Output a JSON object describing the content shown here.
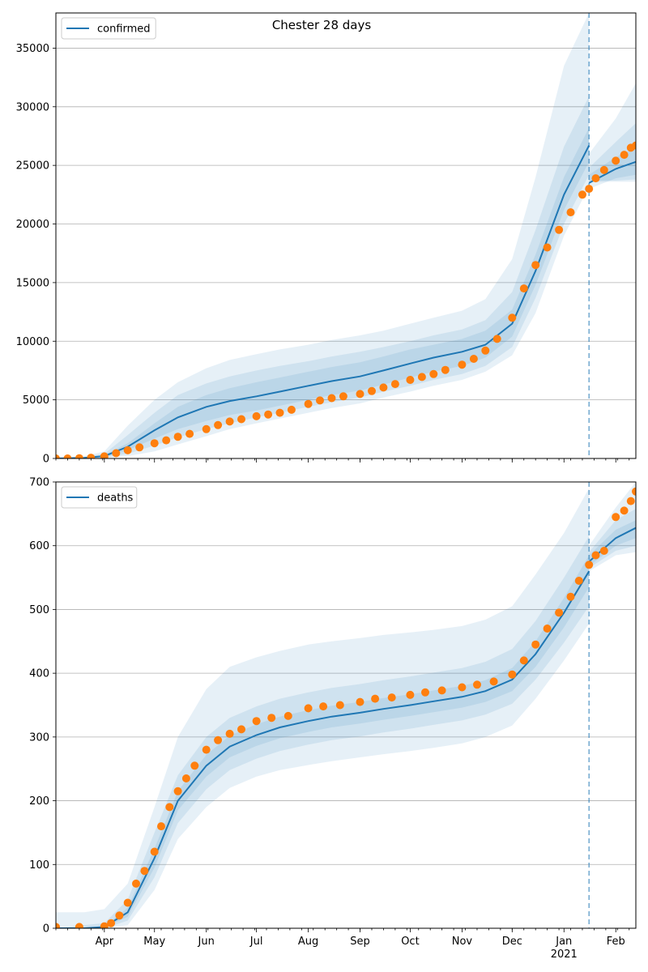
{
  "title": "Chester 28 days",
  "colors": {
    "model": "#1f77b4",
    "observed": "#ff7f0e",
    "band": "#1f77b4",
    "grid": "#b0b0b0",
    "vline": "#1f77b4"
  },
  "x_axis": {
    "month_labels": [
      {
        "label": "Apr",
        "date": "2020-04-01"
      },
      {
        "label": "May",
        "date": "2020-05-01"
      },
      {
        "label": "Jun",
        "date": "2020-06-01"
      },
      {
        "label": "Jul",
        "date": "2020-07-01"
      },
      {
        "label": "Aug",
        "date": "2020-08-01"
      },
      {
        "label": "Sep",
        "date": "2020-09-01"
      },
      {
        "label": "Oct",
        "date": "2020-10-01"
      },
      {
        "label": "Nov",
        "date": "2020-11-01"
      },
      {
        "label": "Dec",
        "date": "2020-12-01"
      },
      {
        "label": "Jan",
        "date": "2021-01-01"
      },
      {
        "label": "Feb",
        "date": "2021-02-01"
      }
    ],
    "year_label": "2021",
    "range": [
      "2020-03-03",
      "2021-02-13"
    ],
    "forecast_start": "2021-01-16"
  },
  "chart_data": [
    {
      "type": "line",
      "title": "Chester 28 days",
      "legend": {
        "label": "confirmed",
        "position": "upper-left"
      },
      "ylim": [
        0,
        38000
      ],
      "yticks": [
        0,
        5000,
        10000,
        15000,
        20000,
        25000,
        30000,
        35000
      ],
      "grid": "horizontal",
      "model_series": {
        "name": "confirmed",
        "x": [
          "2020-03-03",
          "2020-03-20",
          "2020-04-01",
          "2020-04-15",
          "2020-05-01",
          "2020-05-15",
          "2020-06-01",
          "2020-06-15",
          "2020-07-01",
          "2020-07-15",
          "2020-08-01",
          "2020-08-15",
          "2020-09-01",
          "2020-09-15",
          "2020-10-01",
          "2020-10-15",
          "2020-11-01",
          "2020-11-15",
          "2020-12-01",
          "2020-12-15",
          "2021-01-01",
          "2021-01-16",
          "2021-01-16",
          "2021-02-01",
          "2021-02-13"
        ],
        "y": [
          0,
          50,
          200,
          1000,
          2400,
          3500,
          4400,
          4900,
          5300,
          5700,
          6200,
          6600,
          7000,
          7500,
          8100,
          8600,
          9100,
          9700,
          11500,
          16000,
          22500,
          26700,
          23500,
          24700,
          25300
        ],
        "band1_lo": [
          0,
          30,
          120,
          700,
          1700,
          2500,
          3200,
          3700,
          4100,
          4500,
          5000,
          5400,
          5800,
          6300,
          6900,
          7400,
          7900,
          8600,
          10400,
          14800,
          21200,
          25300,
          23000,
          23900,
          24200
        ],
        "band1_hi": [
          0,
          80,
          300,
          1300,
          3000,
          4400,
          5400,
          6000,
          6500,
          6900,
          7400,
          7800,
          8200,
          8700,
          9300,
          9700,
          10200,
          10900,
          12700,
          17400,
          24000,
          28200,
          24200,
          25700,
          26500
        ],
        "band2_lo": [
          0,
          20,
          60,
          400,
          1100,
          1800,
          2500,
          3000,
          3500,
          3900,
          4400,
          4800,
          5200,
          5700,
          6200,
          6700,
          7200,
          7900,
          9500,
          13700,
          20000,
          24200,
          23700,
          23700,
          23800
        ],
        "band2_hi": [
          0,
          120,
          400,
          2000,
          3900,
          5400,
          6400,
          7000,
          7500,
          7900,
          8300,
          8700,
          9100,
          9500,
          10000,
          10500,
          11000,
          11800,
          14200,
          19500,
          26600,
          30900,
          24800,
          27000,
          28600
        ],
        "band3_lo": [
          0,
          10,
          40,
          200,
          600,
          1200,
          1900,
          2500,
          3000,
          3400,
          3900,
          4300,
          4700,
          5200,
          5700,
          6200,
          6700,
          7400,
          8800,
          12400,
          19000,
          23200,
          23600,
          23600,
          23600
        ],
        "band3_hi": [
          0,
          200,
          600,
          2800,
          5000,
          6500,
          7700,
          8400,
          8900,
          9300,
          9700,
          10100,
          10500,
          10900,
          11500,
          12000,
          12600,
          13600,
          17000,
          24000,
          33500,
          38000,
          26000,
          29000,
          32000
        ]
      },
      "observed_points": [
        {
          "x": "2020-03-03",
          "y": 0
        },
        {
          "x": "2020-03-10",
          "y": 0
        },
        {
          "x": "2020-03-17",
          "y": 20
        },
        {
          "x": "2020-03-24",
          "y": 60
        },
        {
          "x": "2020-04-01",
          "y": 180
        },
        {
          "x": "2020-04-08",
          "y": 450
        },
        {
          "x": "2020-04-15",
          "y": 700
        },
        {
          "x": "2020-04-22",
          "y": 950
        },
        {
          "x": "2020-05-01",
          "y": 1300
        },
        {
          "x": "2020-05-08",
          "y": 1550
        },
        {
          "x": "2020-05-15",
          "y": 1850
        },
        {
          "x": "2020-05-22",
          "y": 2100
        },
        {
          "x": "2020-06-01",
          "y": 2500
        },
        {
          "x": "2020-06-08",
          "y": 2850
        },
        {
          "x": "2020-06-15",
          "y": 3150
        },
        {
          "x": "2020-06-22",
          "y": 3350
        },
        {
          "x": "2020-07-01",
          "y": 3600
        },
        {
          "x": "2020-07-08",
          "y": 3750
        },
        {
          "x": "2020-07-15",
          "y": 3900
        },
        {
          "x": "2020-07-22",
          "y": 4150
        },
        {
          "x": "2020-08-01",
          "y": 4650
        },
        {
          "x": "2020-08-08",
          "y": 4950
        },
        {
          "x": "2020-08-15",
          "y": 5150
        },
        {
          "x": "2020-08-22",
          "y": 5300
        },
        {
          "x": "2020-09-01",
          "y": 5500
        },
        {
          "x": "2020-09-08",
          "y": 5750
        },
        {
          "x": "2020-09-15",
          "y": 6050
        },
        {
          "x": "2020-09-22",
          "y": 6350
        },
        {
          "x": "2020-10-01",
          "y": 6700
        },
        {
          "x": "2020-10-08",
          "y": 6950
        },
        {
          "x": "2020-10-15",
          "y": 7200
        },
        {
          "x": "2020-10-22",
          "y": 7550
        },
        {
          "x": "2020-11-01",
          "y": 8000
        },
        {
          "x": "2020-11-08",
          "y": 8500
        },
        {
          "x": "2020-11-15",
          "y": 9200
        },
        {
          "x": "2020-11-22",
          "y": 10200
        },
        {
          "x": "2020-12-01",
          "y": 12000
        },
        {
          "x": "2020-12-08",
          "y": 14500
        },
        {
          "x": "2020-12-15",
          "y": 16500
        },
        {
          "x": "2020-12-22",
          "y": 18000
        },
        {
          "x": "2020-12-29",
          "y": 19500
        },
        {
          "x": "2021-01-05",
          "y": 21000
        },
        {
          "x": "2021-01-12",
          "y": 22500
        },
        {
          "x": "2021-01-16",
          "y": 23000
        },
        {
          "x": "2021-01-20",
          "y": 23900
        },
        {
          "x": "2021-01-25",
          "y": 24600
        },
        {
          "x": "2021-02-01",
          "y": 25400
        },
        {
          "x": "2021-02-06",
          "y": 25900
        },
        {
          "x": "2021-02-10",
          "y": 26500
        },
        {
          "x": "2021-02-13",
          "y": 26700
        }
      ]
    },
    {
      "type": "line",
      "legend": {
        "label": "deaths",
        "position": "upper-left"
      },
      "ylim": [
        0,
        700
      ],
      "yticks": [
        0,
        100,
        200,
        300,
        400,
        500,
        600,
        700
      ],
      "grid": "horizontal",
      "model_series": {
        "name": "deaths",
        "x": [
          "2020-03-03",
          "2020-03-20",
          "2020-04-01",
          "2020-04-15",
          "2020-05-01",
          "2020-05-15",
          "2020-06-01",
          "2020-06-15",
          "2020-07-01",
          "2020-07-15",
          "2020-08-01",
          "2020-08-15",
          "2020-09-01",
          "2020-09-15",
          "2020-10-01",
          "2020-10-15",
          "2020-11-01",
          "2020-11-15",
          "2020-12-01",
          "2020-12-15",
          "2021-01-01",
          "2021-01-16",
          "2021-01-16",
          "2021-02-01",
          "2021-02-13"
        ],
        "y": [
          0,
          0,
          2,
          25,
          110,
          200,
          255,
          285,
          303,
          315,
          325,
          332,
          338,
          344,
          350,
          356,
          363,
          372,
          390,
          430,
          495,
          560,
          575,
          612,
          628
        ],
        "band1_lo": [
          0,
          0,
          1,
          18,
          95,
          185,
          238,
          268,
          286,
          298,
          308,
          315,
          321,
          327,
          333,
          339,
          346,
          355,
          372,
          410,
          472,
          535,
          568,
          600,
          612
        ],
        "band1_hi": [
          0,
          0,
          3,
          32,
          125,
          215,
          272,
          302,
          320,
          332,
          342,
          349,
          355,
          361,
          367,
          373,
          380,
          389,
          408,
          450,
          518,
          585,
          585,
          625,
          640
        ],
        "band2_lo": [
          0,
          0,
          0,
          12,
          80,
          165,
          218,
          248,
          266,
          278,
          288,
          295,
          301,
          307,
          313,
          319,
          326,
          335,
          352,
          390,
          448,
          505,
          565,
          592,
          600
        ],
        "band2_hi": [
          0,
          5,
          8,
          45,
          150,
          240,
          300,
          330,
          348,
          360,
          370,
          377,
          383,
          389,
          395,
          401,
          408,
          418,
          438,
          482,
          550,
          615,
          590,
          640,
          658
        ],
        "band3_lo": [
          0,
          0,
          0,
          5,
          60,
          140,
          190,
          220,
          238,
          248,
          256,
          262,
          268,
          273,
          278,
          283,
          290,
          300,
          318,
          360,
          420,
          478,
          560,
          585,
          590
        ],
        "band3_hi": [
          25,
          25,
          30,
          70,
          190,
          300,
          375,
          410,
          425,
          435,
          445,
          450,
          455,
          460,
          464,
          468,
          474,
          484,
          505,
          555,
          620,
          690,
          600,
          660,
          700
        ]
      },
      "observed_points": [
        {
          "x": "2020-03-03",
          "y": 2
        },
        {
          "x": "2020-03-17",
          "y": 2
        },
        {
          "x": "2020-04-01",
          "y": 3
        },
        {
          "x": "2020-04-05",
          "y": 8
        },
        {
          "x": "2020-04-10",
          "y": 20
        },
        {
          "x": "2020-04-15",
          "y": 40
        },
        {
          "x": "2020-04-20",
          "y": 70
        },
        {
          "x": "2020-04-25",
          "y": 90
        },
        {
          "x": "2020-05-01",
          "y": 120
        },
        {
          "x": "2020-05-05",
          "y": 160
        },
        {
          "x": "2020-05-10",
          "y": 190
        },
        {
          "x": "2020-05-15",
          "y": 215
        },
        {
          "x": "2020-05-20",
          "y": 235
        },
        {
          "x": "2020-05-25",
          "y": 255
        },
        {
          "x": "2020-06-01",
          "y": 280
        },
        {
          "x": "2020-06-08",
          "y": 295
        },
        {
          "x": "2020-06-15",
          "y": 305
        },
        {
          "x": "2020-06-22",
          "y": 312
        },
        {
          "x": "2020-07-01",
          "y": 325
        },
        {
          "x": "2020-07-10",
          "y": 330
        },
        {
          "x": "2020-07-20",
          "y": 333
        },
        {
          "x": "2020-08-01",
          "y": 345
        },
        {
          "x": "2020-08-10",
          "y": 348
        },
        {
          "x": "2020-08-20",
          "y": 350
        },
        {
          "x": "2020-09-01",
          "y": 355
        },
        {
          "x": "2020-09-10",
          "y": 360
        },
        {
          "x": "2020-09-20",
          "y": 362
        },
        {
          "x": "2020-10-01",
          "y": 366
        },
        {
          "x": "2020-10-10",
          "y": 370
        },
        {
          "x": "2020-10-20",
          "y": 373
        },
        {
          "x": "2020-11-01",
          "y": 378
        },
        {
          "x": "2020-11-10",
          "y": 382
        },
        {
          "x": "2020-11-20",
          "y": 387
        },
        {
          "x": "2020-12-01",
          "y": 398
        },
        {
          "x": "2020-12-08",
          "y": 420
        },
        {
          "x": "2020-12-15",
          "y": 445
        },
        {
          "x": "2020-12-22",
          "y": 470
        },
        {
          "x": "2020-12-29",
          "y": 495
        },
        {
          "x": "2021-01-05",
          "y": 520
        },
        {
          "x": "2021-01-10",
          "y": 545
        },
        {
          "x": "2021-01-16",
          "y": 570
        },
        {
          "x": "2021-01-20",
          "y": 585
        },
        {
          "x": "2021-01-25",
          "y": 592
        },
        {
          "x": "2021-02-01",
          "y": 645
        },
        {
          "x": "2021-02-06",
          "y": 655
        },
        {
          "x": "2021-02-10",
          "y": 670
        },
        {
          "x": "2021-02-13",
          "y": 685
        }
      ]
    }
  ]
}
